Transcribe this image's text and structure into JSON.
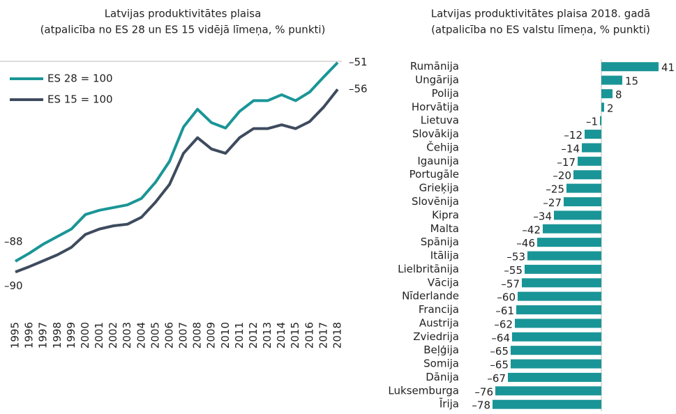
{
  "chart_data": [
    {
      "type": "line",
      "title": "Latvijas produktivitātes plaisa",
      "subtitle": "(atpalicība no ES 28 un ES 15 vidējā līmeņa, % punkti)",
      "categories": [
        "1995",
        "1996",
        "1997",
        "1998",
        "1999",
        "2000",
        "2001",
        "2002",
        "2003",
        "2004",
        "2005",
        "2006",
        "2007",
        "2008",
        "2009",
        "2010",
        "2011",
        "2012",
        "2013",
        "2014",
        "2015",
        "2016",
        "2017",
        "2018"
      ],
      "series": [
        {
          "name": "ES 28 = 100",
          "color": "#1a9597",
          "values": [
            -88,
            -86.5,
            -84.8,
            -83.4,
            -82,
            -79.3,
            -78.5,
            -78,
            -77.5,
            -76.3,
            -73.3,
            -69.4,
            -63,
            -59.7,
            -62.2,
            -63.2,
            -60.1,
            -58.1,
            -58.1,
            -57,
            -58.1,
            -56.5,
            -53.7,
            -51
          ],
          "value_labels": [
            "–88",
            null,
            null,
            null,
            null,
            null,
            null,
            null,
            null,
            null,
            null,
            null,
            null,
            null,
            null,
            null,
            null,
            null,
            null,
            null,
            null,
            null,
            null,
            "–51"
          ]
        },
        {
          "name": "ES 15 = 100",
          "color": "#3e4b5e",
          "values": [
            -90,
            -89,
            -87.9,
            -86.8,
            -85.4,
            -83,
            -82,
            -81.4,
            -81.1,
            -79.8,
            -77,
            -73.7,
            -67.9,
            -65,
            -67.1,
            -67.9,
            -65,
            -63.3,
            -63.3,
            -62.6,
            -63.3,
            -62,
            -59.3,
            -56
          ],
          "value_labels": [
            "–90",
            null,
            null,
            null,
            null,
            null,
            null,
            null,
            null,
            null,
            null,
            null,
            null,
            null,
            null,
            null,
            null,
            null,
            null,
            null,
            null,
            null,
            null,
            "–56"
          ]
        }
      ],
      "ylim": [
        -91,
        -50
      ],
      "legend": "upper left"
    },
    {
      "type": "hbar",
      "title": "Latvijas produktivitātes plaisa 2018. gadā",
      "subtitle": "(atpalicība no ES valstu līmeņa, % punkti)",
      "categories": [
        "Rumānija",
        "Ungārija",
        "Polija",
        "Horvātija",
        "Lietuva",
        "Slovākija",
        "Čehija",
        "Igaunija",
        "Portugāle",
        "Grieķija",
        "Slovēnija",
        "Kipra",
        "Malta",
        "Spānija",
        "Itālija",
        "Lielbritānija",
        "Vācija",
        "Nīderlande",
        "Francija",
        "Austrija",
        "Zviedrija",
        "Beļģija",
        "Somija",
        "Dānija",
        "Luksemburga",
        "Īrija"
      ],
      "values": [
        41,
        15,
        8,
        2,
        -1,
        -12,
        -14,
        -17,
        -20,
        -25,
        -27,
        -34,
        -42,
        -46,
        -53,
        -55,
        -57,
        -60,
        -61,
        -62,
        -64,
        -65,
        -65,
        -67,
        -76,
        -78
      ],
      "value_labels": [
        "41",
        "15",
        "8",
        "2",
        "–1",
        "–12",
        "–14",
        "–17",
        "–20",
        "–25",
        "–27",
        "–34",
        "–42",
        "–46",
        "–53",
        "–55",
        "–57",
        "–60",
        "–61",
        "–62",
        "–64",
        "–65",
        "–65",
        "–67",
        "–76",
        "–78"
      ],
      "color": "#1a9597",
      "xlim": [
        -80,
        45
      ]
    }
  ]
}
